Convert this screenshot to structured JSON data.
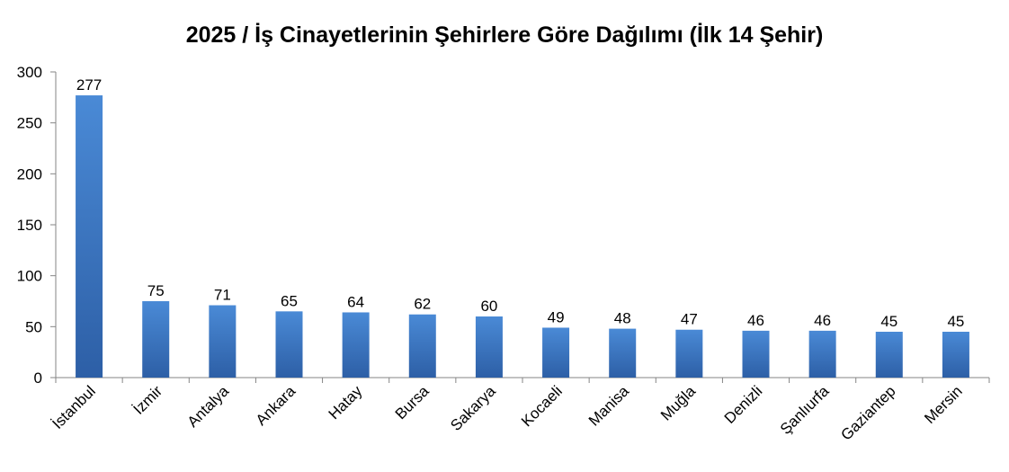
{
  "chart_data": {
    "type": "bar",
    "title": "2025 / İş Cinayetlerinin Şehirlere Göre Dağılımı (İlk 14 Şehir)",
    "xlabel": "",
    "ylabel": "",
    "categories": [
      "İstanbul",
      "İzmir",
      "Antalya",
      "Ankara",
      "Hatay",
      "Bursa",
      "Sakarya",
      "Kocaeli",
      "Manisa",
      "Muğla",
      "Denizli",
      "Şanlıurfa",
      "Gaziantep",
      "Mersin"
    ],
    "values": [
      277,
      75,
      71,
      65,
      64,
      62,
      60,
      49,
      48,
      47,
      46,
      46,
      45,
      45
    ],
    "ylim": [
      0,
      300
    ],
    "yticks": [
      0,
      50,
      100,
      150,
      200,
      250,
      300
    ],
    "grid": false,
    "legend": "none",
    "bar_color_top": "#4a8ad6",
    "bar_color_bottom": "#2d5fa6"
  }
}
